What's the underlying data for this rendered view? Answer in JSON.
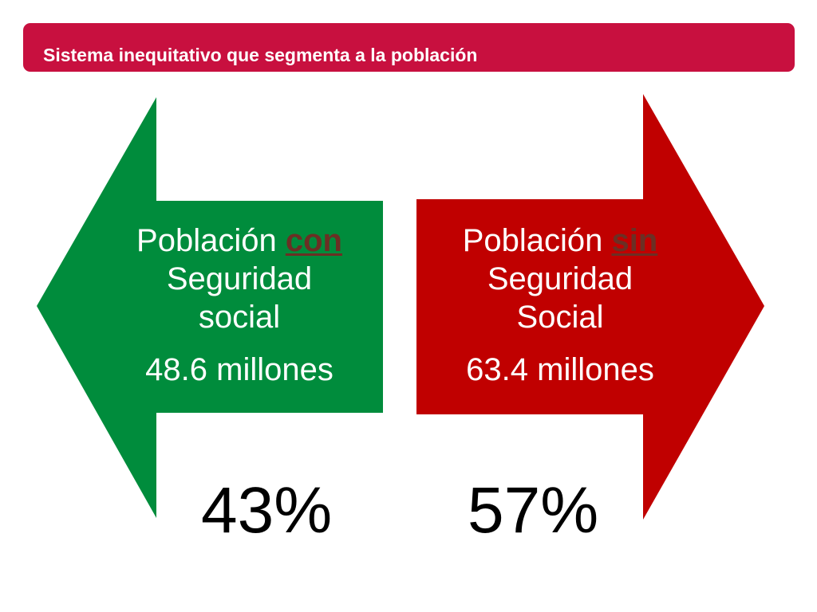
{
  "title": "Sistema inequitativo que segmenta a la población",
  "colors": {
    "title_bar": "#c8103f",
    "with_coverage": "#008c3c",
    "without_coverage": "#c00000"
  },
  "left_arrow": {
    "line1_prefix": "Población ",
    "line1_emphasis": "con",
    "line2": "Seguridad",
    "line3": "social",
    "amount": "48.6 millones",
    "percent": "43%"
  },
  "right_arrow": {
    "line1_prefix": "Población ",
    "line1_emphasis": "sin",
    "line2": "Seguridad",
    "line3": "Social",
    "amount": "63.4 millones",
    "percent": "57%"
  }
}
